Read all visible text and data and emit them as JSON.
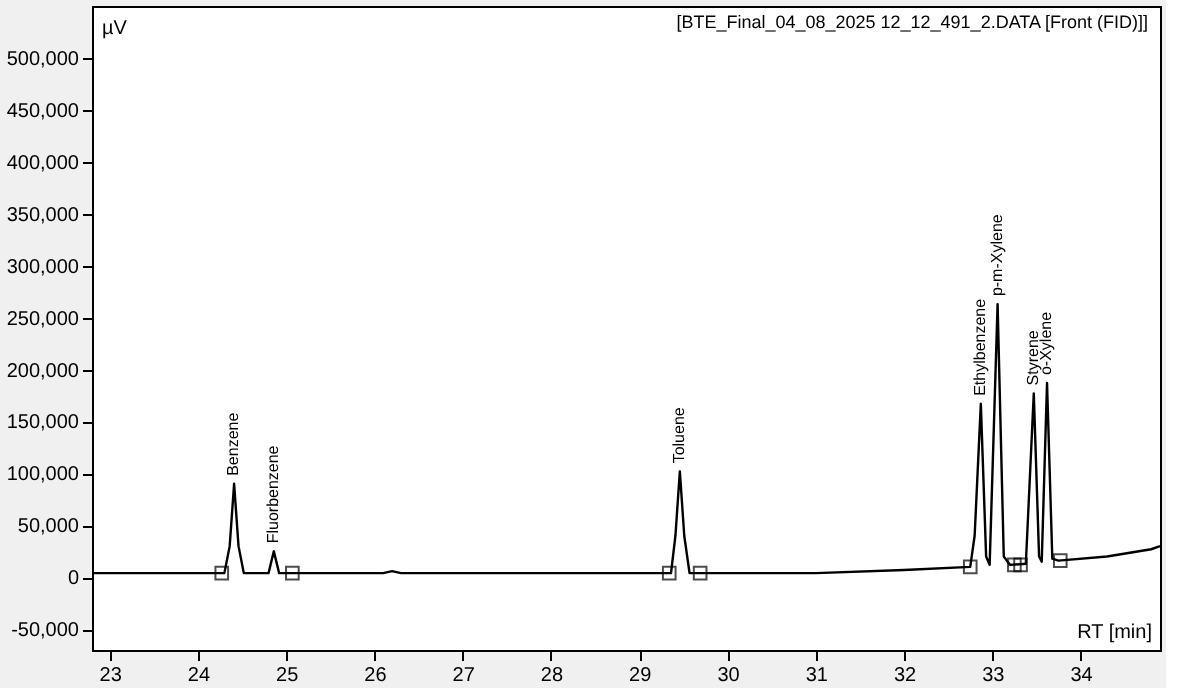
{
  "chart_data": {
    "type": "line",
    "xlabel": "RT [min]",
    "ylabel": "µV",
    "annotations": [
      "[BTE_Final_04_08_2025 12_12_491_2.DATA [Front (FID)]]",
      {
        "text": "Benzene",
        "x": 24.41,
        "y": 90000
      },
      {
        "text": "Fluorbenzene",
        "x": 24.86,
        "y": 25000
      },
      {
        "text": "Toluene",
        "x": 29.46,
        "y": 102000
      },
      {
        "text": "Ethylbenzene",
        "x": 32.87,
        "y": 167000
      },
      {
        "text": "p-m-Xylene",
        "x": 33.06,
        "y": 263000
      },
      {
        "text": "Styrene",
        "x": 33.47,
        "y": 177000
      },
      {
        "text": "o-Xylene",
        "x": 33.62,
        "y": 187000
      }
    ],
    "xlim": [
      22.8,
      34.9
    ],
    "xticks": [
      23,
      24,
      25,
      26,
      27,
      28,
      29,
      30,
      31,
      32,
      33,
      34
    ],
    "ylim": [
      -70000,
      550000
    ],
    "yticks": [
      {
        "value": -50000,
        "label": "-50,000"
      },
      0,
      {
        "value": 50000,
        "label": "50,000"
      },
      {
        "value": 100000,
        "label": "100,000"
      },
      {
        "value": 150000,
        "label": "150,000"
      },
      {
        "value": 200000,
        "label": "200,000"
      },
      {
        "value": 250000,
        "label": "250,000"
      },
      {
        "value": 300000,
        "label": "300,000"
      },
      {
        "value": 350000,
        "label": "350,000"
      },
      {
        "value": 400000,
        "label": "400,000"
      },
      {
        "value": 450000,
        "label": "450,000"
      },
      {
        "value": 500000,
        "label": "500,000"
      }
    ],
    "grid": false,
    "series": [
      {
        "color": "#000000",
        "marker": "none",
        "line_style": "solid",
        "x": [
          22.8,
          24.3,
          24.36,
          24.41,
          24.46,
          24.52,
          24.8,
          24.86,
          24.92,
          26.1,
          26.2,
          26.3,
          29.36,
          29.41,
          29.46,
          29.51,
          29.57,
          31.0,
          32.0,
          32.75,
          32.8,
          32.87,
          32.93,
          32.97,
          33.06,
          33.13,
          33.2,
          33.38,
          33.47,
          33.53,
          33.56,
          33.62,
          33.68,
          33.75,
          34.3,
          34.8,
          34.9
        ],
        "values": [
          4000,
          4000,
          30000,
          90000,
          30000,
          4000,
          4000,
          25000,
          4000,
          4000,
          6000,
          4000,
          4000,
          40000,
          102000,
          40000,
          4000,
          4000,
          7000,
          10000,
          40000,
          167000,
          20000,
          12000,
          263000,
          20000,
          12000,
          13000,
          177000,
          20000,
          15000,
          187000,
          18000,
          16000,
          20000,
          27000,
          30000
        ]
      },
      {
        "type": "scatter",
        "color": "#000000",
        "marker": "square",
        "x": [
          24.27,
          25.07,
          29.34,
          29.69,
          32.75,
          33.25,
          33.32,
          33.77
        ],
        "values": [
          4000,
          4000,
          4000,
          4000,
          10000,
          12000,
          12000,
          16000
        ]
      }
    ]
  }
}
